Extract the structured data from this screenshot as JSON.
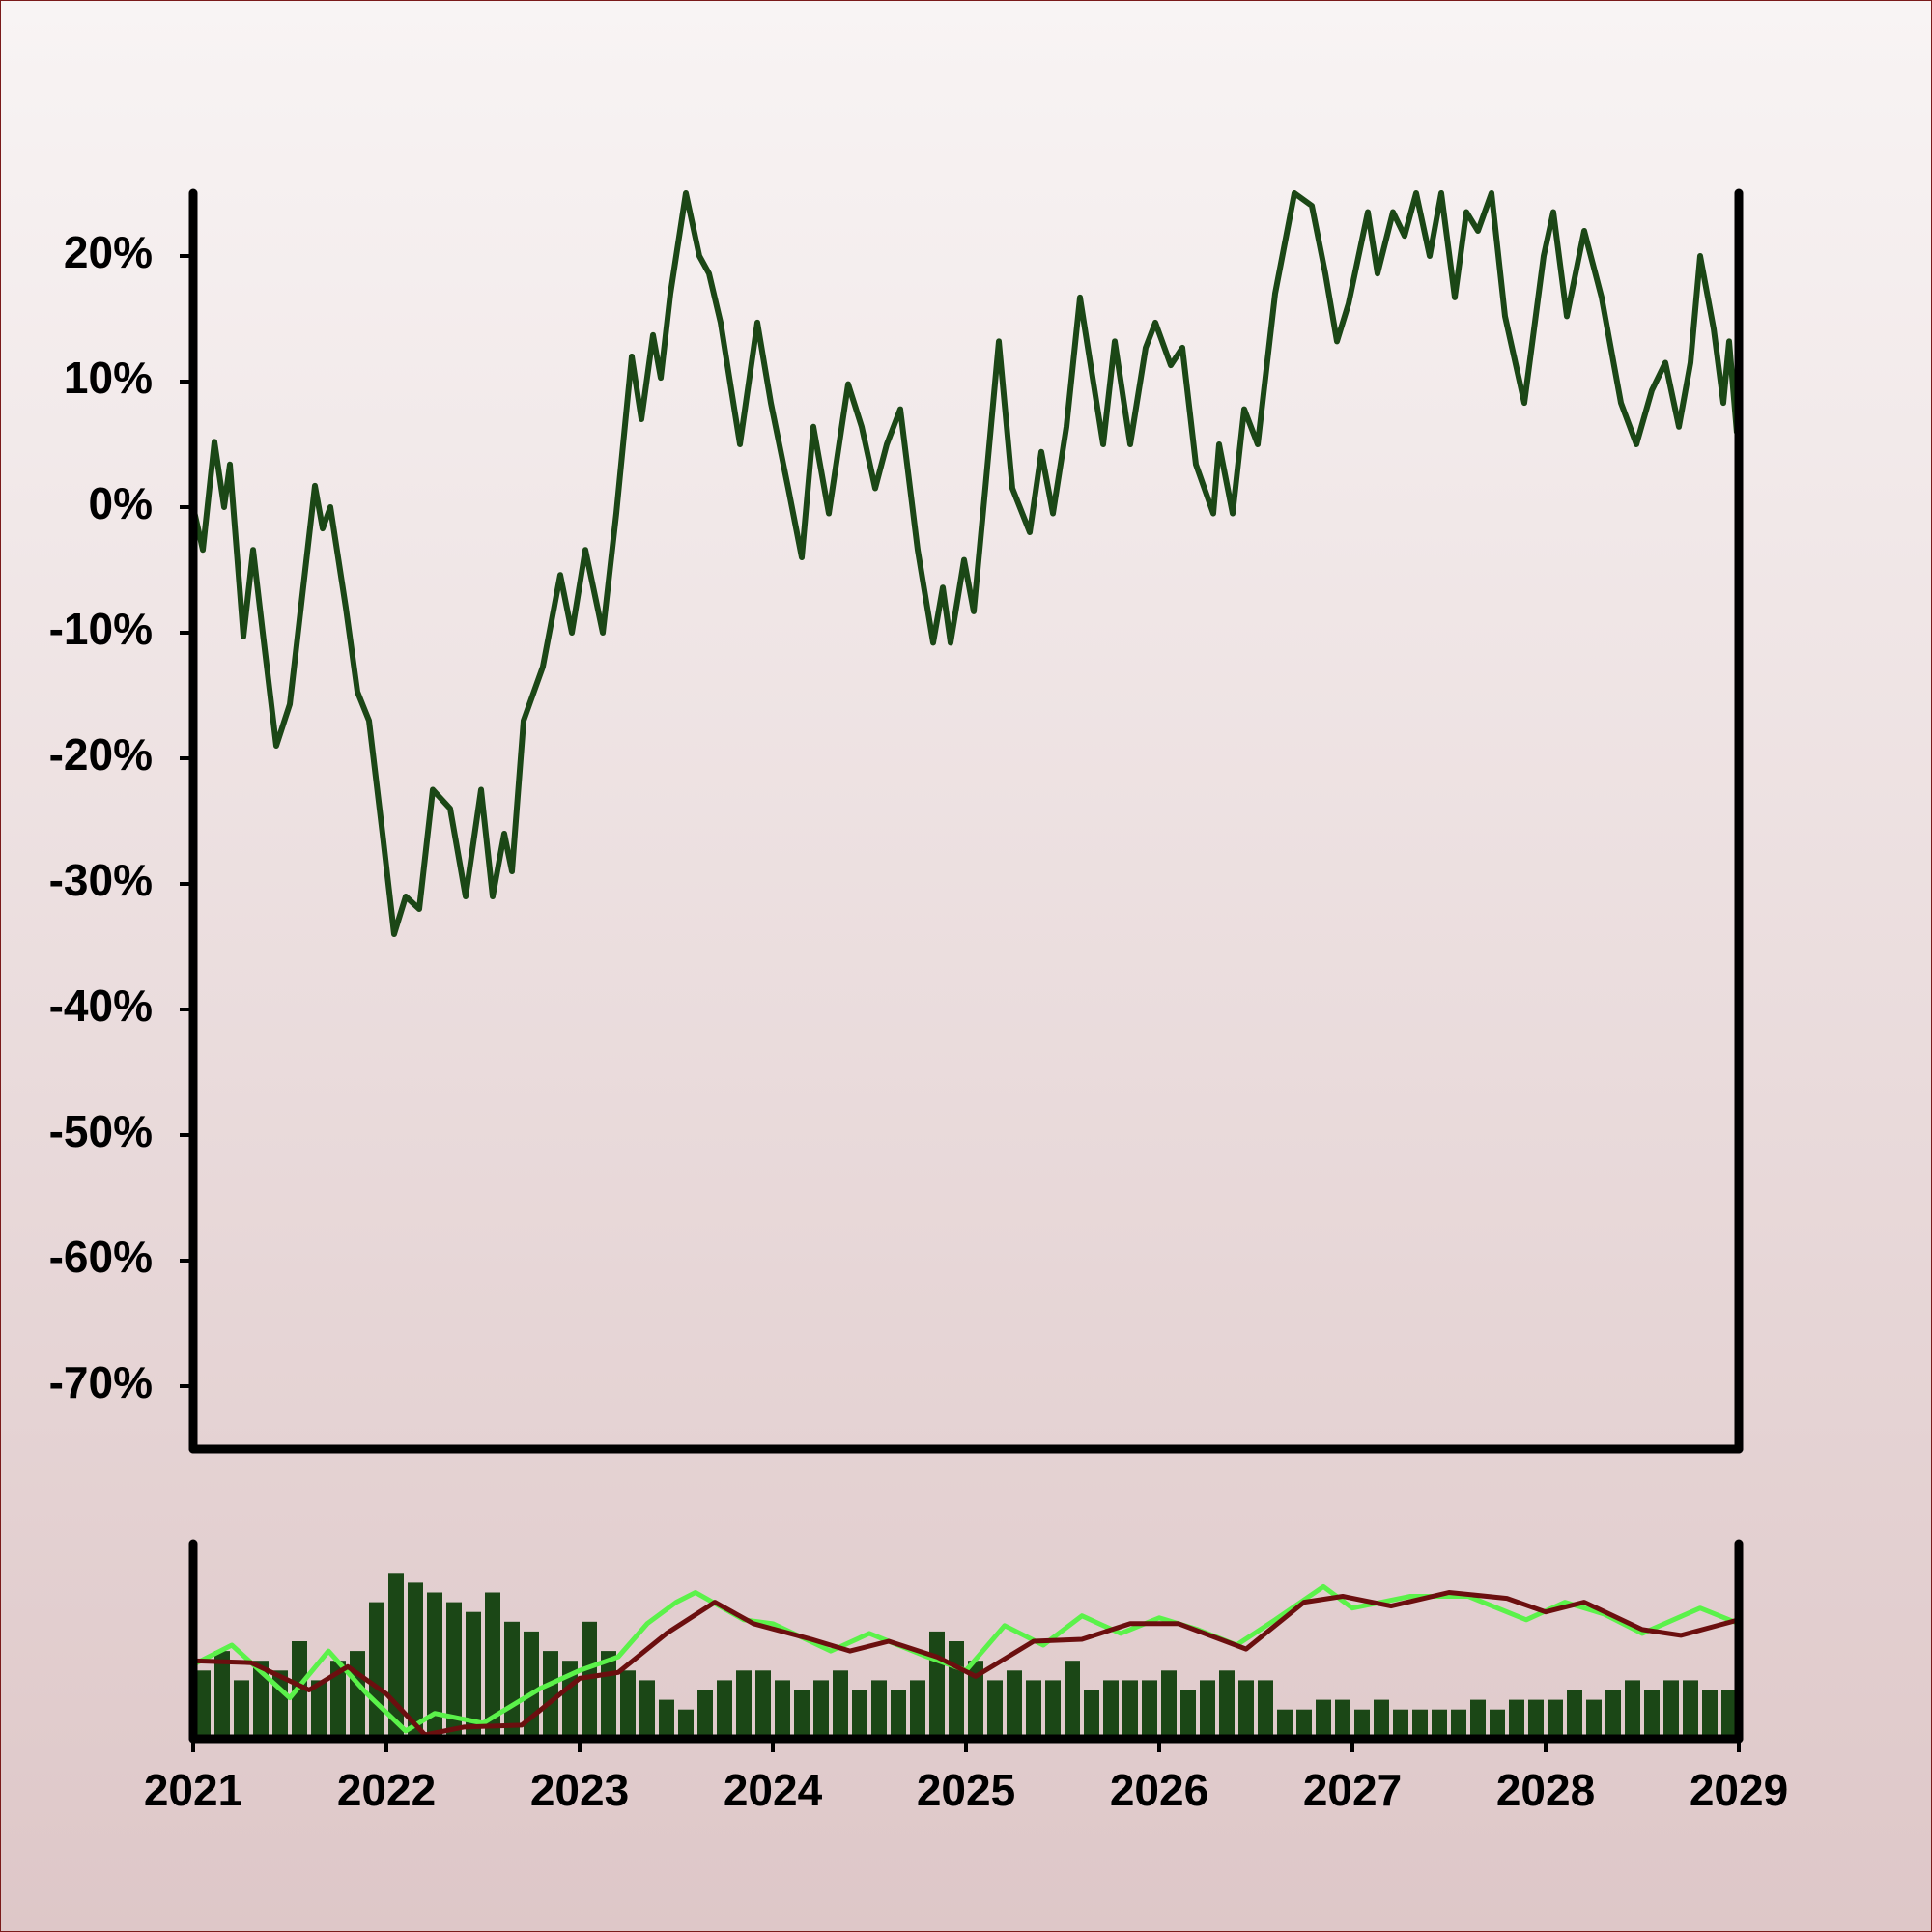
{
  "chart_data": [
    {
      "type": "line",
      "color": "#1b4716",
      "xlim": [
        2021,
        2029
      ],
      "ylim": [
        -75,
        25
      ],
      "yticks": [
        {
          "value": -70,
          "label": "-70%"
        },
        {
          "value": -60,
          "label": "-60%"
        },
        {
          "value": -50,
          "label": "-50%"
        },
        {
          "value": -40,
          "label": "-40%"
        },
        {
          "value": -30,
          "label": "-30%"
        },
        {
          "value": -20,
          "label": "-20%"
        },
        {
          "value": -10,
          "label": "-10%"
        },
        {
          "value": 0,
          "label": "0%"
        },
        {
          "value": 10,
          "label": "10%"
        },
        {
          "value": 20,
          "label": "20%"
        }
      ],
      "x": [
        2021.0,
        2021.05,
        2021.11,
        2021.16,
        2021.19,
        2021.26,
        2021.31,
        2021.36,
        2021.43,
        2021.5,
        2021.63,
        2021.67,
        2021.71,
        2021.79,
        2021.85,
        2021.91,
        2021.98,
        2022.04,
        2022.1,
        2022.17,
        2022.24,
        2022.33,
        2022.41,
        2022.49,
        2022.55,
        2022.61,
        2022.65,
        2022.71,
        2022.81,
        2022.9,
        2022.96,
        2023.03,
        2023.12,
        2023.19,
        2023.27,
        2023.32,
        2023.38,
        2023.42,
        2023.47,
        2023.55,
        2023.62,
        2023.67,
        2023.73,
        2023.83,
        2023.92,
        2023.99,
        2024.08,
        2024.15,
        2024.21,
        2024.29,
        2024.39,
        2024.46,
        2024.53,
        2024.59,
        2024.66,
        2024.75,
        2024.83,
        2024.88,
        2024.92,
        2024.99,
        2025.04,
        2025.1,
        2025.17,
        2025.24,
        2025.33,
        2025.39,
        2025.45,
        2025.52,
        2025.59,
        2025.64,
        2025.71,
        2025.77,
        2025.85,
        2025.93,
        2025.98,
        2026.06,
        2026.12,
        2026.19,
        2026.28,
        2026.31,
        2026.38,
        2026.44,
        2026.51,
        2026.6,
        2026.7,
        2026.79,
        2026.86,
        2026.92,
        2026.98,
        2027.08,
        2027.13,
        2027.21,
        2027.27,
        2027.33,
        2027.4,
        2027.46,
        2027.53,
        2027.59,
        2027.65,
        2027.72,
        2027.79,
        2027.89,
        2027.99,
        2028.04,
        2028.11,
        2028.2,
        2028.29,
        2028.39,
        2028.47,
        2028.55,
        2028.62,
        2028.69,
        2028.75,
        2028.8,
        2028.87,
        2028.92,
        2028.95,
        2028.99
      ],
      "values": [
        0,
        -3.4,
        5.2,
        0,
        3.4,
        -10.3,
        -3.4,
        -10,
        -19,
        -15.7,
        1.7,
        -1.7,
        0,
        -8,
        -14.7,
        -17,
        -26,
        -34,
        -31,
        -32,
        -22.5,
        -24,
        -31,
        -22.5,
        -31,
        -26,
        -29,
        -17,
        -12.7,
        -5.4,
        -10,
        -3.4,
        -10,
        -0.5,
        12,
        7,
        13.7,
        10.3,
        17,
        25,
        20,
        18.6,
        14.7,
        5,
        14.7,
        8.3,
        1.5,
        -4,
        6.4,
        -0.5,
        9.8,
        6.4,
        1.5,
        5,
        7.8,
        -3.4,
        -10.8,
        -6.4,
        -10.8,
        -4.2,
        -8.3,
        1.5,
        13.2,
        1.5,
        -2,
        4.4,
        -0.5,
        6.4,
        16.7,
        11.8,
        5,
        13.2,
        5,
        12.7,
        14.7,
        11.3,
        12.7,
        3.4,
        -0.5,
        5,
        -0.5,
        7.8,
        5,
        17,
        25,
        24,
        18.6,
        13.2,
        16.2,
        23.5,
        18.6,
        23.5,
        21.6,
        25,
        20,
        25,
        16.7,
        23.5,
        22,
        25,
        15.2,
        8.3,
        20,
        23.5,
        15.2,
        22,
        16.7,
        8.3,
        5,
        9.3,
        11.5,
        6.4,
        11.5,
        20,
        14.2,
        8.3,
        13.2,
        5.9
      ]
    },
    {
      "type": "volume",
      "color": "#1b4716",
      "xlim": [
        2021,
        2029
      ],
      "ylim": [
        0,
        100
      ],
      "xticks": [
        2021,
        2022,
        2023,
        2024,
        2025,
        2026,
        2027,
        2028,
        2029
      ],
      "x": [
        2021.05,
        2021.15,
        2021.25,
        2021.35,
        2021.45,
        2021.55,
        2021.65,
        2021.75,
        2021.85,
        2021.95,
        2022.05,
        2022.15,
        2022.25,
        2022.35,
        2022.45,
        2022.55,
        2022.65,
        2022.75,
        2022.85,
        2022.95,
        2023.05,
        2023.15,
        2023.25,
        2023.35,
        2023.45,
        2023.55,
        2023.65,
        2023.75,
        2023.85,
        2023.95,
        2024.05,
        2024.15,
        2024.25,
        2024.35,
        2024.45,
        2024.55,
        2024.65,
        2024.75,
        2024.85,
        2024.95,
        2025.05,
        2025.15,
        2025.25,
        2025.35,
        2025.45,
        2025.55,
        2025.65,
        2025.75,
        2025.85,
        2025.95,
        2026.05,
        2026.15,
        2026.25,
        2026.35,
        2026.45,
        2026.55,
        2026.65,
        2026.75,
        2026.85,
        2026.95,
        2027.05,
        2027.15,
        2027.25,
        2027.35,
        2027.45,
        2027.55,
        2027.65,
        2027.75,
        2027.85,
        2027.95,
        2028.05,
        2028.15,
        2028.25,
        2028.35,
        2028.45,
        2028.55,
        2028.65,
        2028.75,
        2028.85,
        2028.95
      ],
      "values": [
        35,
        45,
        30,
        40,
        35,
        50,
        30,
        40,
        45,
        70,
        85,
        80,
        75,
        70,
        65,
        75,
        60,
        55,
        45,
        40,
        60,
        45,
        35,
        30,
        20,
        15,
        25,
        30,
        35,
        35,
        30,
        25,
        30,
        35,
        25,
        30,
        25,
        30,
        55,
        50,
        40,
        30,
        35,
        30,
        30,
        40,
        25,
        30,
        30,
        30,
        35,
        25,
        30,
        35,
        30,
        30,
        15,
        15,
        20,
        20,
        15,
        20,
        15,
        15,
        15,
        15,
        20,
        15,
        20,
        20,
        20,
        25,
        20,
        25,
        30,
        25,
        30,
        30,
        25,
        25
      ],
      "series": [
        {
          "color": "#5bf24a",
          "x": [
            2021.0,
            2021.2,
            2021.5,
            2021.7,
            2021.9,
            2022.1,
            2022.25,
            2022.5,
            2022.8,
            2023.0,
            2023.2,
            2023.35,
            2023.5,
            2023.6,
            2023.85,
            2024.0,
            2024.3,
            2024.5,
            2024.8,
            2025.0,
            2025.2,
            2025.4,
            2025.6,
            2025.8,
            2026.0,
            2026.2,
            2026.4,
            2026.6,
            2026.85,
            2027.0,
            2027.3,
            2027.6,
            2027.9,
            2028.1,
            2028.3,
            2028.5,
            2028.8,
            2029.0
          ],
          "values": [
            38,
            48,
            21,
            45,
            23,
            4,
            13,
            8,
            26,
            35,
            42,
            59,
            70,
            75,
            61,
            59,
            45,
            54,
            42,
            35,
            58,
            48,
            63,
            54,
            62,
            56,
            48,
            61,
            78,
            67,
            73,
            73,
            61,
            70,
            64,
            54,
            67,
            59
          ]
        },
        {
          "color": "#6b0f0f",
          "x": [
            2021.0,
            2021.3,
            2021.6,
            2021.8,
            2022.0,
            2022.2,
            2022.4,
            2022.7,
            2023.0,
            2023.2,
            2023.45,
            2023.7,
            2023.9,
            2024.2,
            2024.4,
            2024.6,
            2024.85,
            2025.05,
            2025.35,
            2025.6,
            2025.85,
            2026.1,
            2026.45,
            2026.75,
            2026.95,
            2027.2,
            2027.5,
            2027.8,
            2028.0,
            2028.2,
            2028.5,
            2028.7,
            2029.0
          ],
          "values": [
            40,
            39,
            25,
            37,
            23,
            2,
            6,
            7,
            31,
            34,
            54,
            70,
            59,
            51,
            45,
            50,
            42,
            32,
            50,
            51,
            59,
            59,
            46,
            70,
            73,
            68,
            75,
            72,
            65,
            70,
            56,
            53,
            61
          ]
        }
      ]
    }
  ]
}
